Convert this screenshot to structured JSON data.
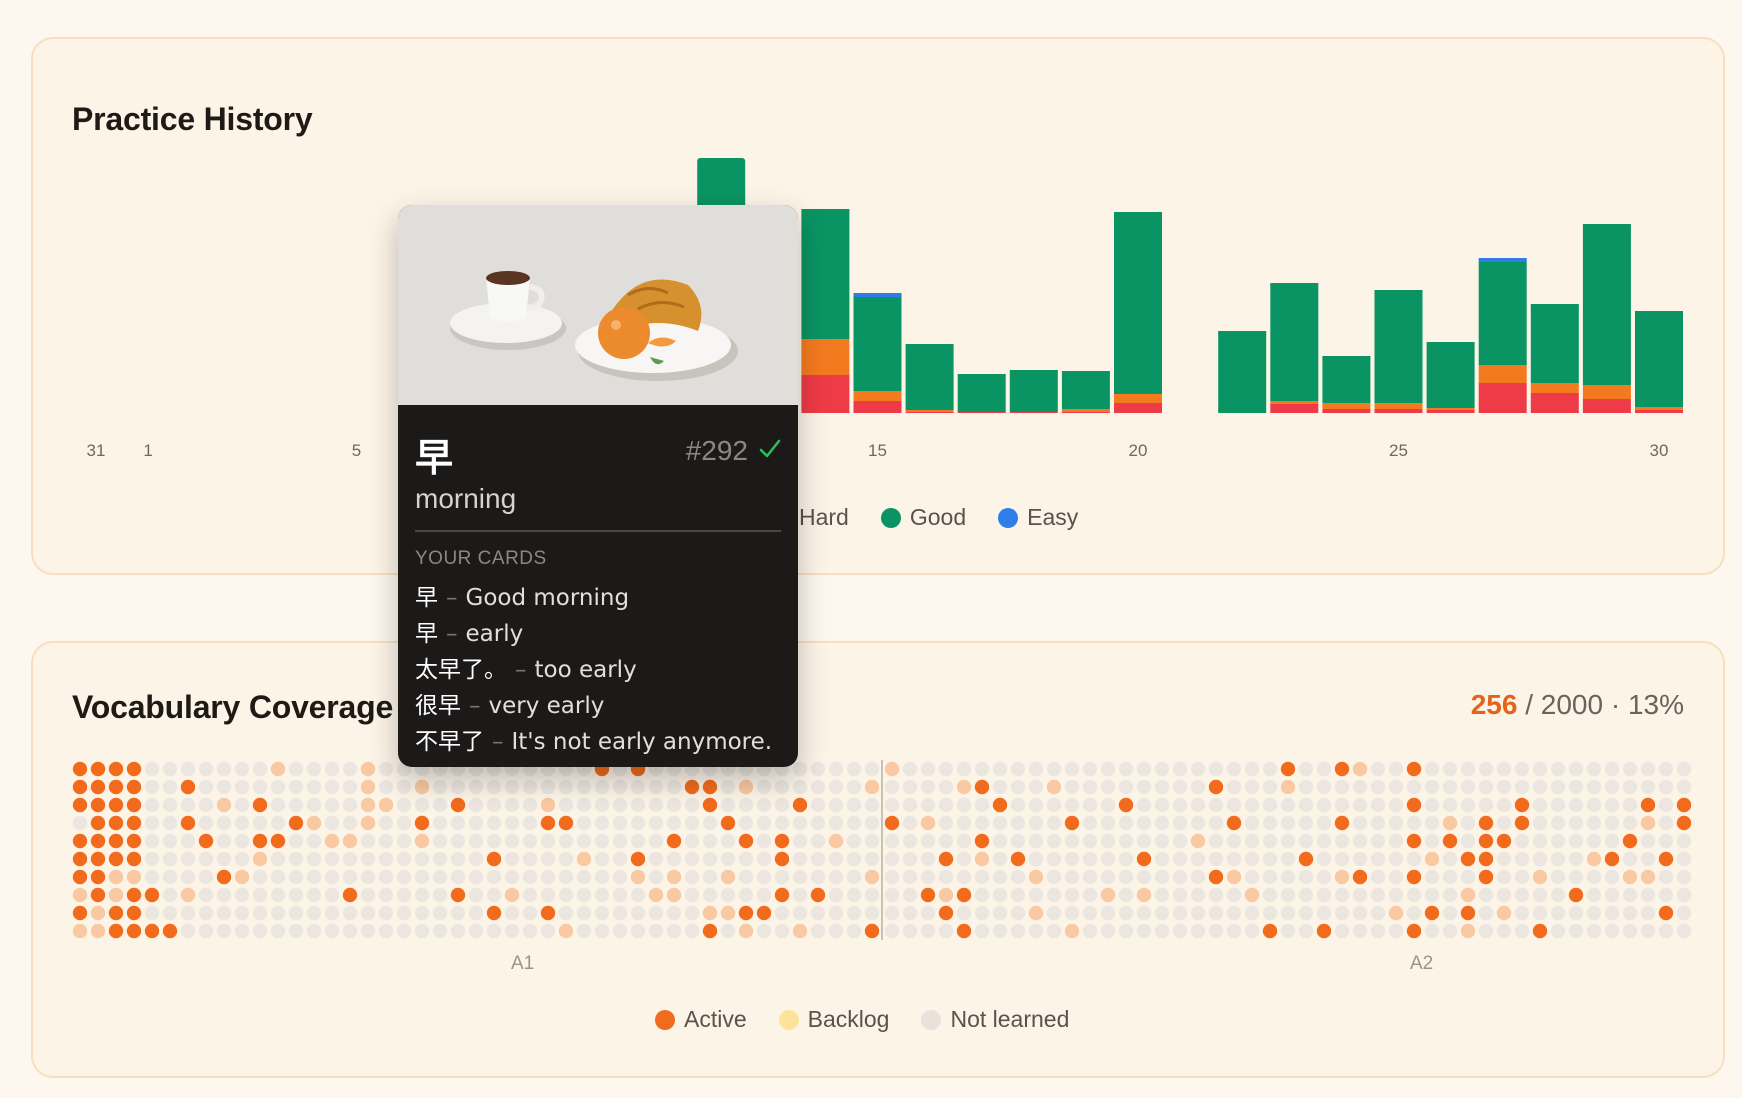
{
  "practice": {
    "title": "Practice History",
    "legend": [
      {
        "label": "Hard",
        "color": "#f47a1f"
      },
      {
        "label": "Good",
        "color": "#0a9463"
      },
      {
        "label": "Easy",
        "color": "#2f7de8"
      }
    ]
  },
  "chart_data": {
    "type": "bar",
    "stacked": true,
    "x_tick_labels": [
      "31",
      "1",
      "5",
      "15",
      "20",
      "25",
      "30"
    ],
    "categories": [
      "31",
      "1",
      "2",
      "3",
      "4",
      "5",
      "6",
      "7",
      "8",
      "9",
      "10",
      "11",
      "12",
      "13",
      "14",
      "15",
      "16",
      "17",
      "18",
      "19",
      "20",
      "21",
      "22",
      "23",
      "24",
      "25",
      "26",
      "27",
      "28",
      "29",
      "30"
    ],
    "series": [
      {
        "color": "#ee3b47",
        "values": [
          0,
          0,
          0,
          0,
          0,
          0,
          0,
          0,
          0,
          0,
          0,
          0,
          0,
          0,
          38,
          12,
          1,
          1,
          1,
          1,
          10,
          0,
          0,
          9,
          4,
          4,
          3,
          30,
          20,
          14,
          3
        ]
      },
      {
        "name": "Hard",
        "color": "#f47a1f",
        "values": [
          0,
          0,
          0,
          0,
          0,
          0,
          0,
          0,
          0,
          0,
          0,
          0,
          0,
          0,
          36,
          10,
          2,
          0,
          0,
          3,
          9,
          0,
          0,
          3,
          6,
          6,
          2,
          18,
          10,
          14,
          3
        ]
      },
      {
        "name": "Good",
        "color": "#0a9463",
        "values": [
          0,
          0,
          0,
          0,
          0,
          0,
          0,
          0,
          0,
          0,
          0,
          0,
          0,
          0,
          130,
          96,
          66,
          38,
          42,
          38,
          182,
          0,
          82,
          118,
          47,
          113,
          66,
          104,
          79,
          161,
          96
        ]
      },
      {
        "name": "Easy",
        "color": "#2f7de8",
        "values": [
          0,
          0,
          0,
          0,
          0,
          0,
          0,
          0,
          0,
          0,
          0,
          0,
          0,
          0,
          0,
          2,
          0,
          0,
          0,
          0,
          0,
          0,
          0,
          0,
          0,
          0,
          0,
          3,
          0,
          0,
          0
        ]
      }
    ],
    "partially_hidden_bar": {
      "category": "12",
      "note": "top visible behind popup"
    }
  },
  "coverage": {
    "title": "Vocabulary Coverage",
    "active_count": "256",
    "total": "/ 2000",
    "percent": "· 13%",
    "levels": [
      "A1",
      "A2"
    ],
    "legend": [
      {
        "label": "Active",
        "color": "#f26b1d"
      },
      {
        "label": "Backlog",
        "color": "#fde39a"
      },
      {
        "label": "Not learned",
        "color": "#e8e2da"
      }
    ]
  },
  "card": {
    "hanzi": "早",
    "number": "#292",
    "meaning": "morning",
    "section_label": "YOUR CARDS",
    "items": [
      {
        "zh": "早",
        "en": "Good morning"
      },
      {
        "zh": "早",
        "en": "early"
      },
      {
        "zh": "太早了。",
        "en": "too early"
      },
      {
        "zh": "很早",
        "en": "very early"
      },
      {
        "zh": "不早了",
        "en": "It's not early anymore."
      }
    ]
  }
}
